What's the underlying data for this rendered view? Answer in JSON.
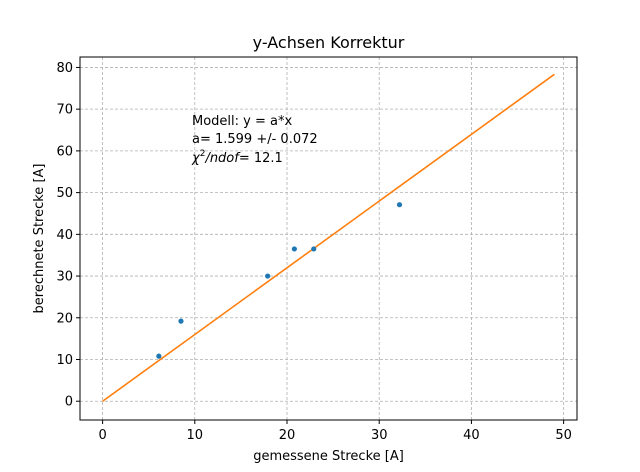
{
  "chart_data": {
    "type": "scatter",
    "title": "y-Achsen Korrektur",
    "xlabel": "gemessene Strecke [A]",
    "ylabel": "berechnete Strecke [A]",
    "xlim": [
      -2.45,
      51.45
    ],
    "ylim": [
      -4.5,
      82.5
    ],
    "xticks": [
      0,
      10,
      20,
      30,
      40,
      50
    ],
    "yticks": [
      0,
      10,
      20,
      30,
      40,
      50,
      60,
      70,
      80
    ],
    "grid": true,
    "points": {
      "color": "#1f77b4",
      "x": [
        6.1,
        8.5,
        17.9,
        20.8,
        22.9,
        32.2
      ],
      "y": [
        10.8,
        19.2,
        30.0,
        36.5,
        36.5,
        47.1
      ]
    },
    "fit": {
      "color": "#ff7f0e",
      "x": [
        0,
        49
      ],
      "y": [
        0,
        78.35
      ]
    },
    "annotation": {
      "line1": "Modell: y = a*x",
      "line2": "a= 1.599 +/- 0.072",
      "line3_suffix": "= 12.1"
    }
  }
}
